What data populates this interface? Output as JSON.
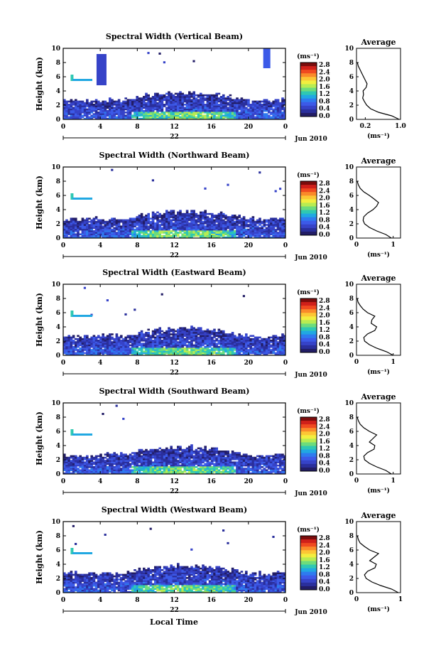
{
  "common": {
    "height_label": "Height (km)",
    "unit_label": "(ms⁻¹)",
    "average_title": "Average",
    "date_day": "22",
    "date_suffix": "Jun 2010",
    "xlabel": "Local Time",
    "colorbar_ticks": [
      "2.8",
      "2.4",
      "2.0",
      "1.6",
      "1.2",
      "0.8",
      "0.4",
      "0.0"
    ],
    "colorbar_colors": [
      "#7b0c0c",
      "#d0201a",
      "#f04a20",
      "#fa8a2a",
      "#fcc635",
      "#f2ee3f",
      "#b8ec52",
      "#6ddc7c",
      "#2fc8b2",
      "#21a8e2",
      "#2e7bef",
      "#3c5ae8",
      "#3643c8",
      "#2a2f9c",
      "#221d66"
    ],
    "xticks": [
      "0",
      "4",
      "8",
      "12",
      "16",
      "20",
      "0"
    ],
    "yticks": [
      "0",
      "2",
      "4",
      "6",
      "8",
      "10"
    ]
  },
  "chart_data": [
    {
      "type": "heatmap",
      "title": "Spectral Width (Vertical Beam)",
      "xlabel": "",
      "ylabel": "Height (km)",
      "xlim": [
        0,
        24
      ],
      "ylim": [
        0,
        10
      ],
      "colorbar_range": [
        0.0,
        2.8
      ],
      "profile": {
        "title": "Average",
        "xticks": [
          "0.2",
          "1.0"
        ],
        "xlim": [
          0,
          1
        ],
        "height": [
          0,
          0.5,
          1,
          1.5,
          2,
          2.5,
          3,
          3.5,
          4,
          4.5,
          5,
          5.5,
          6,
          6.5,
          7,
          7.5,
          8
        ],
        "width": [
          0.97,
          0.8,
          0.5,
          0.32,
          0.23,
          0.18,
          0.14,
          0.16,
          0.15,
          0.22,
          0.24,
          0.2,
          0.16,
          0.12,
          0.08,
          0.04,
          0.02
        ]
      }
    },
    {
      "type": "heatmap",
      "title": "Spectral Width (Northward Beam)",
      "xlabel": "",
      "ylabel": "Height (km)",
      "xlim": [
        0,
        24
      ],
      "ylim": [
        0,
        10
      ],
      "colorbar_range": [
        0.0,
        2.8
      ],
      "profile": {
        "title": "Average",
        "xticks": [
          "0",
          "1"
        ],
        "xlim": [
          0,
          1.2
        ],
        "height": [
          0,
          0.5,
          1,
          1.5,
          2,
          2.5,
          3,
          3.5,
          4,
          4.5,
          5,
          5.5,
          6,
          6.5,
          7,
          7.5,
          8
        ],
        "width": [
          0.95,
          0.8,
          0.55,
          0.35,
          0.22,
          0.18,
          0.2,
          0.3,
          0.45,
          0.55,
          0.6,
          0.48,
          0.35,
          0.2,
          0.1,
          0.05,
          0.02
        ]
      }
    },
    {
      "type": "heatmap",
      "title": "Spectral Width (Eastward Beam)",
      "xlabel": "",
      "ylabel": "Height (km)",
      "xlim": [
        0,
        24
      ],
      "ylim": [
        0,
        10
      ],
      "colorbar_range": [
        0.0,
        2.8
      ],
      "profile": {
        "title": "Average",
        "xticks": [
          "0",
          "1"
        ],
        "xlim": [
          0,
          1.2
        ],
        "height": [
          0,
          0.5,
          1,
          1.5,
          2,
          2.5,
          3,
          3.5,
          4,
          4.5,
          5,
          5.5,
          6,
          6.5,
          7,
          7.5,
          8
        ],
        "width": [
          1.0,
          0.82,
          0.55,
          0.35,
          0.22,
          0.2,
          0.3,
          0.5,
          0.55,
          0.4,
          0.42,
          0.5,
          0.3,
          0.18,
          0.1,
          0.04,
          0.02
        ]
      }
    },
    {
      "type": "heatmap",
      "title": "Spectral Width (Southward Beam)",
      "xlabel": "",
      "ylabel": "Height (km)",
      "xlim": [
        0,
        24
      ],
      "ylim": [
        0,
        10
      ],
      "colorbar_range": [
        0.0,
        2.8
      ],
      "profile": {
        "title": "Average",
        "xticks": [
          "0",
          "1"
        ],
        "xlim": [
          0,
          1.2
        ],
        "height": [
          0,
          0.5,
          1,
          1.5,
          2,
          2.5,
          3,
          3.5,
          4,
          4.5,
          5,
          5.5,
          6,
          6.5,
          7,
          7.5,
          8
        ],
        "width": [
          0.95,
          0.8,
          0.55,
          0.35,
          0.22,
          0.2,
          0.3,
          0.48,
          0.5,
          0.35,
          0.45,
          0.55,
          0.35,
          0.2,
          0.1,
          0.05,
          0.02
        ]
      }
    },
    {
      "type": "heatmap",
      "title": "Spectral Width (Westward Beam)",
      "xlabel": "Local Time",
      "ylabel": "Height (km)",
      "xlim": [
        0,
        24
      ],
      "ylim": [
        0,
        10
      ],
      "colorbar_range": [
        0.0,
        2.8
      ],
      "profile": {
        "title": "Average",
        "xticks": [
          "0",
          "1"
        ],
        "xlim": [
          0,
          1
        ],
        "height": [
          0,
          0.5,
          1,
          1.5,
          2,
          2.5,
          3,
          3.5,
          4,
          4.5,
          5,
          5.5,
          6,
          6.5,
          7,
          7.5,
          8
        ],
        "width": [
          0.95,
          0.8,
          0.55,
          0.35,
          0.22,
          0.18,
          0.25,
          0.42,
          0.45,
          0.3,
          0.4,
          0.5,
          0.3,
          0.18,
          0.08,
          0.04,
          0.02
        ]
      }
    }
  ]
}
